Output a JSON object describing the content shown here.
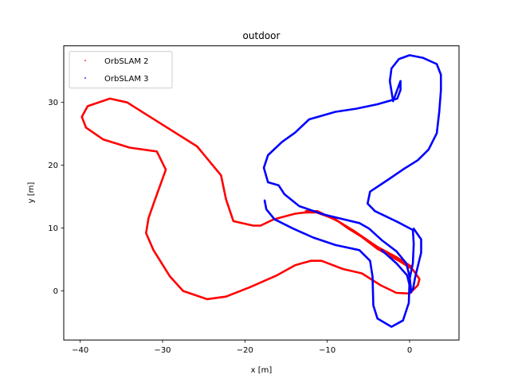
{
  "chart_data": {
    "type": "line",
    "title": "outdoor",
    "xlabel": "x [m]",
    "ylabel": "y [m]",
    "xlim": [
      -42,
      6
    ],
    "ylim": [
      -7.8,
      39
    ],
    "xticks": [
      -40,
      -30,
      -20,
      -10,
      0
    ],
    "yticks": [
      0,
      10,
      20,
      30
    ],
    "grid": false,
    "legend_position": "upper left",
    "series": [
      {
        "name": "OrbSLAM 2",
        "color": "#ff0000",
        "marker": ".",
        "segments": [
          [
            [
              0.0,
              -0.4
            ],
            [
              -1.6,
              -0.3
            ],
            [
              -3.5,
              0.9
            ],
            [
              -5.8,
              2.8
            ],
            [
              -8.1,
              3.5
            ],
            [
              -10.7,
              4.8
            ],
            [
              -12.0,
              4.8
            ],
            [
              -13.9,
              4.1
            ],
            [
              -16.1,
              2.5
            ],
            [
              -19.4,
              0.6
            ],
            [
              -22.3,
              -0.9
            ],
            [
              -24.6,
              -1.3
            ],
            [
              -27.5,
              0.0
            ],
            [
              -29.1,
              2.3
            ],
            [
              -30.1,
              4.4
            ],
            [
              -31.1,
              6.5
            ],
            [
              -32.0,
              9.2
            ],
            [
              -31.7,
              11.6
            ],
            [
              -30.9,
              14.6
            ],
            [
              -29.6,
              19.3
            ],
            [
              -30.7,
              22.2
            ],
            [
              -34.0,
              22.8
            ],
            [
              -37.2,
              24.1
            ],
            [
              -39.3,
              26.0
            ],
            [
              -39.8,
              27.7
            ],
            [
              -39.1,
              29.4
            ],
            [
              -36.4,
              30.6
            ],
            [
              -34.3,
              30.0
            ],
            [
              -32.0,
              28.1
            ],
            [
              -25.8,
              23.0
            ],
            [
              -22.9,
              18.4
            ],
            [
              -22.3,
              14.6
            ],
            [
              -21.4,
              11.1
            ],
            [
              -19.0,
              10.4
            ],
            [
              -18.1,
              10.4
            ],
            [
              -16.5,
              11.4
            ],
            [
              -13.9,
              12.3
            ],
            [
              -12.6,
              12.5
            ],
            [
              -11.3,
              12.5
            ],
            [
              -9.0,
              11.4
            ],
            [
              -7.4,
              9.9
            ],
            [
              -5.8,
              8.6
            ],
            [
              -3.9,
              6.7
            ],
            [
              -1.3,
              4.8
            ],
            [
              0.4,
              3.4
            ],
            [
              1.2,
              1.9
            ],
            [
              1.0,
              0.9
            ],
            [
              0.0,
              -0.4
            ]
          ],
          [
            [
              -12.6,
              12.7
            ],
            [
              -11.2,
              12.7
            ],
            [
              -8.7,
              11.1
            ],
            [
              -6.8,
              9.6
            ],
            [
              -3.9,
              7.0
            ],
            [
              -1.5,
              5.3
            ],
            [
              0.2,
              3.9
            ]
          ]
        ]
      },
      {
        "name": "OrbSLAM 3",
        "color": "#0000ff",
        "marker": ".",
        "segments": [
          [
            [
              0.2,
              -0.2
            ],
            [
              0.0,
              2.3
            ],
            [
              -0.4,
              4.4
            ],
            [
              -1.6,
              6.3
            ],
            [
              -3.4,
              8.1
            ],
            [
              -4.9,
              9.9
            ],
            [
              -6.1,
              10.8
            ],
            [
              -9.3,
              11.8
            ],
            [
              -10.5,
              12.2
            ],
            [
              -13.4,
              13.5
            ],
            [
              -15.2,
              15.4
            ],
            [
              -15.9,
              16.8
            ],
            [
              -17.2,
              17.3
            ],
            [
              -17.7,
              19.6
            ],
            [
              -17.2,
              21.6
            ],
            [
              -15.5,
              23.7
            ],
            [
              -13.9,
              25.2
            ],
            [
              -12.2,
              27.3
            ],
            [
              -9.0,
              28.5
            ],
            [
              -6.5,
              29.0
            ],
            [
              -3.9,
              29.7
            ],
            [
              -1.5,
              30.6
            ],
            [
              -1.1,
              32.0
            ],
            [
              -1.1,
              33.4
            ],
            [
              -2.0,
              30.2
            ],
            [
              -2.4,
              33.4
            ],
            [
              -2.2,
              35.4
            ],
            [
              -1.3,
              36.9
            ],
            [
              0.0,
              37.5
            ],
            [
              1.6,
              37.1
            ],
            [
              3.3,
              36.1
            ],
            [
              3.8,
              34.4
            ],
            [
              3.8,
              31.9
            ],
            [
              3.6,
              28.5
            ],
            [
              3.3,
              25.1
            ],
            [
              2.3,
              22.5
            ],
            [
              1.0,
              20.8
            ],
            [
              -0.6,
              19.5
            ],
            [
              -2.5,
              17.8
            ],
            [
              -4.8,
              15.8
            ],
            [
              -5.1,
              13.9
            ],
            [
              -4.2,
              12.7
            ],
            [
              -1.5,
              11.0
            ],
            [
              0.4,
              9.7
            ],
            [
              0.5,
              7.5
            ],
            [
              0.4,
              4.4
            ],
            [
              0.0,
              1.9
            ],
            [
              -0.1,
              -1.9
            ],
            [
              -0.8,
              -4.7
            ],
            [
              -2.2,
              -5.7
            ],
            [
              -3.9,
              -4.4
            ],
            [
              -4.4,
              -2.3
            ],
            [
              -4.5,
              2.3
            ],
            [
              -4.8,
              4.8
            ],
            [
              -6.1,
              6.5
            ],
            [
              -9.0,
              7.3
            ],
            [
              -11.7,
              8.5
            ],
            [
              -14.1,
              9.9
            ],
            [
              -16.4,
              11.4
            ],
            [
              -17.4,
              13.0
            ],
            [
              -17.6,
              14.4
            ]
          ],
          [
            [
              -3.4,
              6.5
            ],
            [
              -1.6,
              4.4
            ],
            [
              -0.3,
              2.5
            ],
            [
              0.2,
              -0.2
            ]
          ],
          [
            [
              0.5,
              9.9
            ],
            [
              1.4,
              8.2
            ],
            [
              1.4,
              6.1
            ],
            [
              0.7,
              2.3
            ],
            [
              0.4,
              0.2
            ]
          ]
        ]
      }
    ]
  },
  "legend": {
    "items": [
      {
        "label": "OrbSLAM 2",
        "color": "#ff0000"
      },
      {
        "label": "OrbSLAM 3",
        "color": "#0000ff"
      }
    ]
  }
}
